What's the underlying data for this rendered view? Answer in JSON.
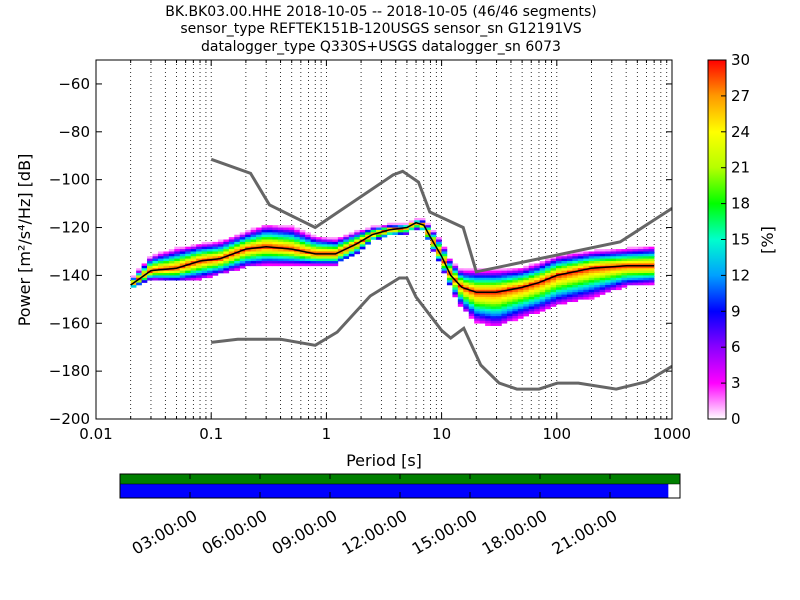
{
  "chart_data": {
    "type": "heatmap",
    "title_lines": [
      "BK.BK03.00.HHE   2018-10-05 -- 2018-10-05  (46/46 segments)",
      "sensor_type REFTEK151B-120USGS sensor_sn G12191VS",
      "datalogger_type Q330S+USGS datalogger_sn 6073"
    ],
    "xlabel": "Period [s]",
    "ylabel": "Power [m²/s⁴/Hz] [dB]",
    "x_scale": "log",
    "xlim": [
      0.01,
      1000
    ],
    "ylim": [
      -200,
      -50
    ],
    "x_ticks": [
      {
        "value": 0.01,
        "label": "0.01"
      },
      {
        "value": 0.1,
        "label": "0.1"
      },
      {
        "value": 1,
        "label": "1"
      },
      {
        "value": 10,
        "label": "10"
      },
      {
        "value": 100,
        "label": "100"
      },
      {
        "value": 1000,
        "label": "1000"
      }
    ],
    "y_ticks": [
      {
        "value": -60,
        "label": "−60"
      },
      {
        "value": -80,
        "label": "−80"
      },
      {
        "value": -100,
        "label": "−100"
      },
      {
        "value": -120,
        "label": "−120"
      },
      {
        "value": -140,
        "label": "−140"
      },
      {
        "value": -160,
        "label": "−160"
      },
      {
        "value": -180,
        "label": "−180"
      },
      {
        "value": -200,
        "label": "−200"
      }
    ],
    "grid": "vertical-dotted",
    "colorbar": {
      "label": "[%]",
      "range": [
        0,
        30
      ],
      "ticks": [
        {
          "value": 0,
          "label": "0"
        },
        {
          "value": 3,
          "label": "3"
        },
        {
          "value": 6,
          "label": "6"
        },
        {
          "value": 9,
          "label": "9"
        },
        {
          "value": 12,
          "label": "12"
        },
        {
          "value": 15,
          "label": "15"
        },
        {
          "value": 18,
          "label": "18"
        },
        {
          "value": 21,
          "label": "21"
        },
        {
          "value": 24,
          "label": "24"
        },
        {
          "value": 27,
          "label": "27"
        },
        {
          "value": 30,
          "label": "30"
        }
      ],
      "colors": [
        "#ffffff",
        "#ff00ff",
        "#8a00ff",
        "#0000ff",
        "#00a0ff",
        "#00ffcc",
        "#00ff00",
        "#b5ff00",
        "#ffff00",
        "#ff9900",
        "#ff0000"
      ]
    },
    "noise_models": {
      "color": "#666666",
      "high": [
        [
          0.1,
          -91.5
        ],
        [
          0.22,
          -97.4
        ],
        [
          0.32,
          -110.5
        ],
        [
          0.8,
          -120.0
        ],
        [
          3.8,
          -98.0
        ],
        [
          4.6,
          -96.5
        ],
        [
          6.3,
          -101.0
        ],
        [
          7.9,
          -113.5
        ],
        [
          15.4,
          -120.0
        ],
        [
          20.0,
          -138.5
        ],
        [
          354.8,
          -126.0
        ],
        [
          1000,
          -112.0
        ]
      ],
      "low": [
        [
          0.1,
          -168.0
        ],
        [
          0.17,
          -166.7
        ],
        [
          0.4,
          -166.7
        ],
        [
          0.8,
          -169.2
        ],
        [
          1.24,
          -163.7
        ],
        [
          2.4,
          -148.6
        ],
        [
          4.3,
          -141.1
        ],
        [
          5.0,
          -141.1
        ],
        [
          6.0,
          -149.0
        ],
        [
          10.0,
          -163.0
        ],
        [
          12.0,
          -166.2
        ],
        [
          15.6,
          -162.1
        ],
        [
          21.9,
          -177.5
        ],
        [
          31.6,
          -185.0
        ],
        [
          45.0,
          -187.5
        ],
        [
          70.0,
          -187.5
        ],
        [
          101.0,
          -185.0
        ],
        [
          154.0,
          -185.0
        ],
        [
          328.0,
          -187.5
        ],
        [
          600.0,
          -184.4
        ],
        [
          1000,
          -178.0
        ]
      ]
    },
    "mode_curve": {
      "color": "#000000",
      "points": [
        [
          0.02,
          -144
        ],
        [
          0.03,
          -138
        ],
        [
          0.05,
          -137
        ],
        [
          0.08,
          -134
        ],
        [
          0.12,
          -133
        ],
        [
          0.2,
          -129
        ],
        [
          0.3,
          -128
        ],
        [
          0.5,
          -129
        ],
        [
          0.8,
          -131
        ],
        [
          1.2,
          -131
        ],
        [
          1.8,
          -127
        ],
        [
          2.5,
          -123
        ],
        [
          3.5,
          -121
        ],
        [
          5,
          -120
        ],
        [
          6,
          -118
        ],
        [
          7,
          -119
        ],
        [
          8,
          -124
        ],
        [
          10,
          -132
        ],
        [
          12,
          -140
        ],
        [
          15,
          -145
        ],
        [
          20,
          -147
        ],
        [
          30,
          -147
        ],
        [
          50,
          -145
        ],
        [
          70,
          -143
        ],
        [
          100,
          -140
        ],
        [
          200,
          -137
        ],
        [
          400,
          -136
        ],
        [
          700,
          -136
        ]
      ]
    },
    "psd_spread": [
      {
        "x": [
          0.02,
          0.03,
          0.05,
          0.08,
          0.12,
          0.2,
          0.3,
          0.5,
          0.8,
          1.2,
          1.8,
          2.5,
          3.5,
          5,
          6,
          7,
          8,
          10,
          12,
          15,
          20,
          30,
          50,
          70,
          100,
          200,
          400,
          700
        ],
        "upper": [
          -142,
          -132,
          -129,
          -127,
          -126,
          -122,
          -119,
          -120,
          -124,
          -125,
          -122,
          -120,
          -119,
          -119,
          -117,
          -117,
          -120,
          -126,
          -134,
          -138,
          -138,
          -138,
          -137,
          -135,
          -132,
          -130,
          -129,
          -128
        ],
        "lower": [
          -146,
          -142,
          -143,
          -142,
          -140,
          -137,
          -136,
          -136,
          -136,
          -136,
          -132,
          -126,
          -124,
          -123,
          -121,
          -122,
          -128,
          -137,
          -146,
          -154,
          -160,
          -162,
          -158,
          -156,
          -153,
          -150,
          -145,
          -144
        ]
      }
    ],
    "time_axis": {
      "labels": [
        "03:00:00",
        "06:00:00",
        "09:00:00",
        "12:00:00",
        "15:00:00",
        "18:00:00",
        "21:00:00"
      ],
      "hours": [
        3,
        6,
        9,
        12,
        15,
        18,
        21
      ],
      "range_hours": [
        0,
        24
      ],
      "coverage_end_hour": 23.5,
      "colors": {
        "data": "#007f00",
        "segments": "#0000ff"
      }
    }
  }
}
